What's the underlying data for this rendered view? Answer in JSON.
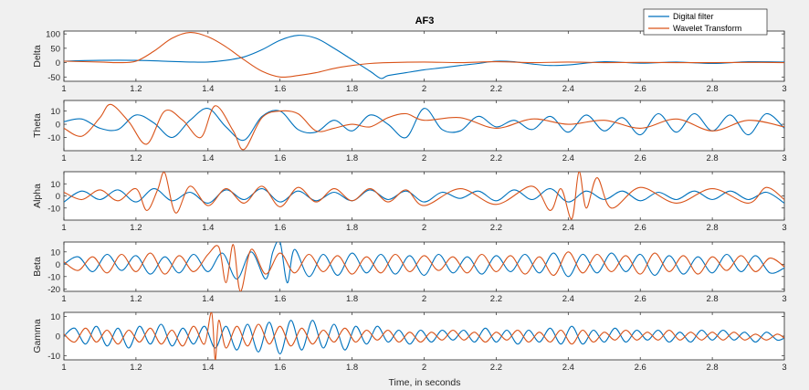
{
  "title": "AF3",
  "xlabel": "Time, in seconds",
  "colors": {
    "digital": "#0072bd",
    "wavelet": "#d95319"
  },
  "legend": [
    "Digital filter",
    "Wavelet Transform"
  ],
  "xticks": [
    "1",
    "1.2",
    "1.4",
    "1.6",
    "1.8",
    "2",
    "2.2",
    "2.4",
    "2.6",
    "2.8",
    "3"
  ],
  "chart_data": [
    {
      "type": "line",
      "ylabel": "Delta",
      "xlim": [
        1,
        3
      ],
      "ylim": [
        -65,
        110
      ],
      "yticks": [
        100,
        50,
        0,
        -50
      ],
      "series": [
        {
          "name": "Digital filter",
          "x": [
            1,
            1.1,
            1.2,
            1.3,
            1.35,
            1.4,
            1.45,
            1.5,
            1.55,
            1.6,
            1.65,
            1.7,
            1.75,
            1.8,
            1.85,
            1.88,
            1.9,
            1.95,
            2,
            2.05,
            2.1,
            2.15,
            2.2,
            2.25,
            2.3,
            2.35,
            2.4,
            2.5,
            2.6,
            2.7,
            2.8,
            2.9,
            3
          ],
          "values": [
            5,
            8,
            8,
            4,
            2,
            2,
            8,
            20,
            45,
            78,
            95,
            85,
            50,
            10,
            -30,
            -55,
            -45,
            -35,
            -25,
            -18,
            -10,
            -3,
            5,
            3,
            -5,
            -10,
            -8,
            3,
            -2,
            2,
            -3,
            3,
            2
          ]
        },
        {
          "name": "Wavelet Transform",
          "x": [
            1,
            1.1,
            1.15,
            1.2,
            1.25,
            1.3,
            1.35,
            1.4,
            1.45,
            1.5,
            1.55,
            1.6,
            1.65,
            1.7,
            1.75,
            1.8,
            1.85,
            1.9,
            2,
            2.1,
            2.2,
            2.3,
            2.4,
            2.5,
            2.6,
            2.7,
            2.8,
            2.9,
            3
          ],
          "values": [
            5,
            2,
            0,
            5,
            40,
            85,
            105,
            90,
            55,
            10,
            -30,
            -50,
            -45,
            -35,
            -20,
            -10,
            -3,
            0,
            2,
            0,
            3,
            0,
            2,
            0,
            1,
            0,
            0,
            1,
            0
          ]
        }
      ]
    },
    {
      "type": "line",
      "ylabel": "Theta",
      "xlim": [
        1,
        3
      ],
      "ylim": [
        -20,
        18
      ],
      "yticks": [
        10,
        0,
        -10
      ],
      "series": [
        {
          "name": "Digital filter",
          "x": [
            1,
            1.05,
            1.1,
            1.15,
            1.2,
            1.25,
            1.3,
            1.35,
            1.4,
            1.45,
            1.5,
            1.55,
            1.6,
            1.65,
            1.7,
            1.75,
            1.8,
            1.85,
            1.9,
            1.95,
            2,
            2.05,
            2.1,
            2.15,
            2.2,
            2.25,
            2.3,
            2.35,
            2.4,
            2.45,
            2.5,
            2.55,
            2.6,
            2.65,
            2.7,
            2.75,
            2.8,
            2.85,
            2.9,
            2.95,
            3
          ],
          "values": [
            2,
            4,
            -3,
            -4,
            7,
            1,
            -10,
            3,
            12,
            -2,
            -12,
            6,
            10,
            -4,
            -6,
            3,
            -5,
            7,
            0,
            -10,
            12,
            -4,
            -5,
            6,
            -2,
            3,
            -4,
            6,
            -6,
            7,
            -5,
            5,
            -8,
            8,
            -6,
            8,
            -5,
            7,
            -8,
            8,
            -3
          ]
        },
        {
          "name": "Wavelet Transform",
          "x": [
            1,
            1.05,
            1.1,
            1.13,
            1.18,
            1.23,
            1.28,
            1.33,
            1.38,
            1.42,
            1.47,
            1.5,
            1.55,
            1.6,
            1.65,
            1.7,
            1.75,
            1.8,
            1.85,
            1.9,
            1.95,
            2,
            2.1,
            2.2,
            2.3,
            2.4,
            2.5,
            2.6,
            2.7,
            2.8,
            2.9,
            3
          ],
          "values": [
            -3,
            -9,
            5,
            15,
            2,
            -15,
            10,
            3,
            -10,
            14,
            -5,
            -19,
            5,
            10,
            8,
            -5,
            -3,
            0,
            -2,
            5,
            8,
            3,
            5,
            -3,
            4,
            0,
            3,
            -3,
            4,
            -5,
            3,
            -2
          ]
        }
      ]
    },
    {
      "type": "line",
      "ylabel": "Alpha",
      "xlim": [
        1,
        3
      ],
      "ylim": [
        -20,
        20
      ],
      "yticks": [
        10,
        0,
        -10
      ],
      "series": [
        {
          "name": "Digital filter",
          "x": [
            1,
            1.05,
            1.1,
            1.15,
            1.2,
            1.25,
            1.3,
            1.35,
            1.4,
            1.45,
            1.5,
            1.55,
            1.6,
            1.65,
            1.7,
            1.75,
            1.8,
            1.85,
            1.9,
            1.95,
            2,
            2.05,
            2.1,
            2.15,
            2.2,
            2.25,
            2.3,
            2.35,
            2.4,
            2.45,
            2.5,
            2.55,
            2.6,
            2.65,
            2.7,
            2.75,
            2.8,
            2.85,
            2.9,
            2.95,
            3
          ],
          "values": [
            -5,
            4,
            -3,
            5,
            -5,
            6,
            -4,
            3,
            -6,
            5,
            -3,
            6,
            -5,
            4,
            -4,
            3,
            -4,
            5,
            -3,
            4,
            -5,
            3,
            -2,
            4,
            -4,
            5,
            -3,
            6,
            -5,
            4,
            -3,
            4,
            -4,
            3,
            -3,
            4,
            -3,
            4,
            -3,
            3,
            -6
          ]
        },
        {
          "name": "Wavelet Transform",
          "x": [
            1,
            1.05,
            1.1,
            1.15,
            1.2,
            1.23,
            1.26,
            1.28,
            1.31,
            1.35,
            1.4,
            1.45,
            1.5,
            1.55,
            1.6,
            1.65,
            1.7,
            1.75,
            1.8,
            1.85,
            1.9,
            1.95,
            2,
            2.1,
            2.2,
            2.3,
            2.35,
            2.38,
            2.41,
            2.43,
            2.45,
            2.48,
            2.52,
            2.6,
            2.7,
            2.8,
            2.9,
            2.95,
            3
          ],
          "values": [
            3,
            -3,
            5,
            -4,
            6,
            -12,
            5,
            19,
            -14,
            8,
            -8,
            6,
            -6,
            8,
            -9,
            7,
            -5,
            6,
            -4,
            6,
            -5,
            5,
            -8,
            6,
            -7,
            8,
            -12,
            6,
            -19,
            20,
            -10,
            15,
            -10,
            7,
            -6,
            6,
            -6,
            7,
            -3
          ]
        }
      ]
    },
    {
      "type": "line",
      "ylabel": "Beta",
      "xlim": [
        1,
        3
      ],
      "ylim": [
        -22,
        18
      ],
      "yticks": [
        10,
        0,
        -10,
        -20
      ],
      "series": [
        {
          "name": "Digital filter",
          "x": [
            1,
            1.04,
            1.08,
            1.12,
            1.16,
            1.2,
            1.24,
            1.28,
            1.32,
            1.36,
            1.4,
            1.44,
            1.48,
            1.52,
            1.56,
            1.58,
            1.6,
            1.62,
            1.64,
            1.68,
            1.72,
            1.76,
            1.8,
            1.84,
            1.88,
            1.92,
            1.96,
            2,
            2.04,
            2.08,
            2.12,
            2.16,
            2.2,
            2.24,
            2.28,
            2.32,
            2.36,
            2.4,
            2.44,
            2.48,
            2.52,
            2.56,
            2.6,
            2.64,
            2.68,
            2.72,
            2.76,
            2.8,
            2.84,
            2.88,
            2.92,
            2.96,
            3
          ],
          "values": [
            0,
            6,
            -6,
            8,
            -5,
            7,
            -8,
            6,
            -7,
            8,
            -6,
            9,
            -12,
            10,
            -12,
            10,
            18,
            -15,
            12,
            -10,
            8,
            -9,
            9,
            -7,
            8,
            -8,
            7,
            -9,
            8,
            -7,
            6,
            -8,
            7,
            -6,
            8,
            -7,
            9,
            -10,
            8,
            -7,
            9,
            -6,
            8,
            -9,
            7,
            -8,
            6,
            -7,
            8,
            -6,
            7,
            -7,
            -3
          ]
        },
        {
          "name": "Wavelet Transform",
          "x": [
            1,
            1.04,
            1.08,
            1.12,
            1.16,
            1.2,
            1.24,
            1.28,
            1.32,
            1.36,
            1.4,
            1.43,
            1.45,
            1.47,
            1.49,
            1.52,
            1.56,
            1.6,
            1.64,
            1.68,
            1.72,
            1.76,
            1.8,
            1.84,
            1.88,
            1.92,
            1.96,
            2,
            2.04,
            2.08,
            2.12,
            2.16,
            2.2,
            2.24,
            2.28,
            2.32,
            2.36,
            2.4,
            2.44,
            2.48,
            2.52,
            2.56,
            2.6,
            2.64,
            2.68,
            2.72,
            2.76,
            2.8,
            2.84,
            2.88,
            2.92,
            2.96,
            3
          ],
          "values": [
            2,
            -5,
            6,
            -7,
            8,
            -6,
            9,
            -8,
            7,
            -6,
            8,
            14,
            -15,
            16,
            -22,
            12,
            -8,
            9,
            -7,
            8,
            -6,
            7,
            -8,
            6,
            -7,
            8,
            -6,
            7,
            -5,
            6,
            -7,
            8,
            -6,
            7,
            -8,
            6,
            -9,
            10,
            -7,
            8,
            -6,
            7,
            -8,
            9,
            -6,
            7,
            -8,
            6,
            -5,
            7,
            -6,
            5,
            -2
          ]
        }
      ]
    },
    {
      "type": "line",
      "ylabel": "Gamma",
      "xlim": [
        1,
        3
      ],
      "ylim": [
        -12,
        12
      ],
      "yticks": [
        10,
        0,
        -10
      ],
      "series": [
        {
          "name": "Digital filter",
          "x": [
            1,
            1.03,
            1.06,
            1.09,
            1.12,
            1.15,
            1.18,
            1.21,
            1.24,
            1.27,
            1.3,
            1.33,
            1.36,
            1.39,
            1.42,
            1.45,
            1.48,
            1.51,
            1.54,
            1.57,
            1.6,
            1.63,
            1.66,
            1.69,
            1.72,
            1.75,
            1.78,
            1.81,
            1.84,
            1.87,
            1.9,
            1.93,
            1.96,
            1.99,
            2.02,
            2.05,
            2.08,
            2.11,
            2.14,
            2.17,
            2.2,
            2.23,
            2.26,
            2.29,
            2.32,
            2.35,
            2.38,
            2.41,
            2.44,
            2.47,
            2.5,
            2.53,
            2.56,
            2.59,
            2.62,
            2.65,
            2.68,
            2.71,
            2.74,
            2.77,
            2.8,
            2.83,
            2.86,
            2.89,
            2.92,
            2.95,
            2.98,
            3
          ],
          "values": [
            0,
            4,
            -4,
            5,
            -5,
            4,
            -6,
            5,
            -4,
            6,
            -5,
            4,
            -4,
            5,
            -6,
            5,
            -7,
            6,
            -8,
            7,
            -9,
            8,
            -7,
            8,
            -6,
            6,
            -7,
            5,
            -4,
            5,
            -3,
            3,
            -4,
            3,
            -3,
            3,
            -2,
            3,
            -3,
            4,
            -3,
            3,
            -4,
            3,
            -3,
            4,
            -4,
            5,
            -4,
            3,
            -3,
            4,
            -3,
            3,
            -2,
            3,
            -3,
            2,
            -3,
            3,
            -2,
            3,
            -2,
            2,
            -3,
            2,
            -2,
            -1
          ]
        },
        {
          "name": "Wavelet Transform",
          "x": [
            1,
            1.03,
            1.06,
            1.09,
            1.12,
            1.15,
            1.18,
            1.21,
            1.24,
            1.27,
            1.3,
            1.33,
            1.36,
            1.39,
            1.41,
            1.42,
            1.43,
            1.45,
            1.48,
            1.51,
            1.54,
            1.57,
            1.6,
            1.63,
            1.66,
            1.69,
            1.72,
            1.75,
            1.78,
            1.81,
            1.84,
            1.87,
            1.9,
            1.93,
            1.96,
            1.99,
            2.02,
            2.05,
            2.08,
            2.11,
            2.14,
            2.17,
            2.2,
            2.23,
            2.26,
            2.29,
            2.32,
            2.35,
            2.38,
            2.41,
            2.44,
            2.47,
            2.5,
            2.53,
            2.56,
            2.59,
            2.62,
            2.65,
            2.68,
            2.71,
            2.74,
            2.77,
            2.8,
            2.83,
            2.86,
            2.89,
            2.92,
            2.95,
            2.98,
            3
          ],
          "values": [
            1,
            -3,
            4,
            -3,
            3,
            -4,
            3,
            -3,
            4,
            -4,
            3,
            -5,
            5,
            -4,
            12,
            -12,
            8,
            -6,
            5,
            -5,
            6,
            -4,
            5,
            -5,
            4,
            -4,
            3,
            -3,
            4,
            -3,
            3,
            -2,
            3,
            -3,
            2,
            -3,
            2,
            -2,
            3,
            -2,
            2,
            -3,
            2,
            -2,
            3,
            -3,
            2,
            -3,
            3,
            -4,
            3,
            -3,
            2,
            -2,
            3,
            -2,
            2,
            -2,
            3,
            -2,
            2,
            -2,
            2,
            -2,
            2,
            -2,
            1,
            -2,
            1,
            -1
          ]
        }
      ]
    }
  ]
}
